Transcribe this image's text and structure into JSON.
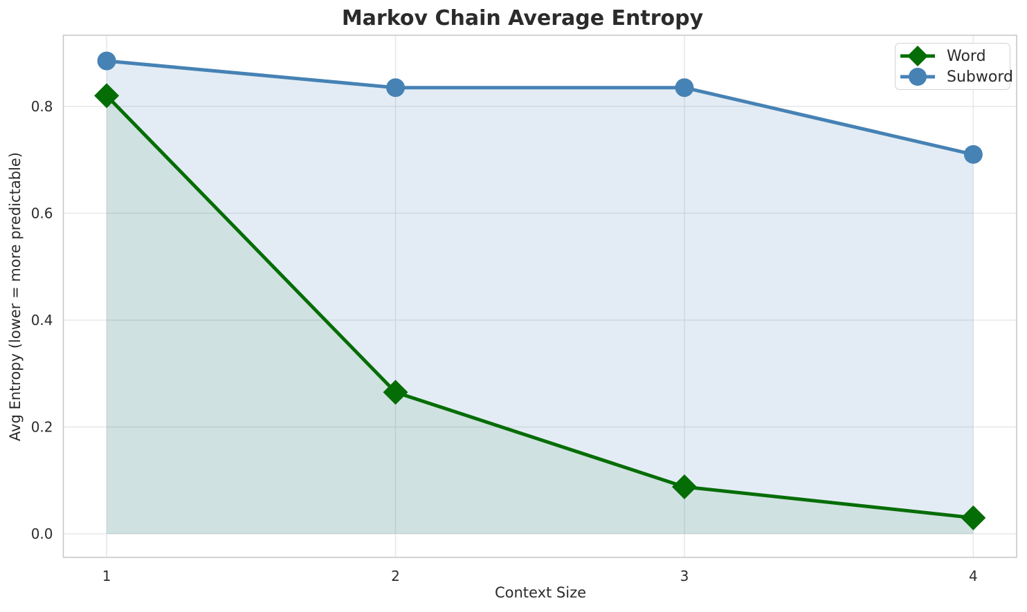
{
  "chart_data": {
    "type": "line",
    "title": "Markov Chain Average Entropy",
    "xlabel": "Context Size",
    "ylabel": "Avg Entropy (lower = more predictable)",
    "x": [
      1,
      2,
      3,
      4
    ],
    "xtick_labels": [
      "1",
      "2",
      "3",
      "4"
    ],
    "ytick_values": [
      0.0,
      0.2,
      0.4,
      0.6,
      0.8
    ],
    "ytick_labels": [
      "0.0",
      "0.2",
      "0.4",
      "0.6",
      "0.8"
    ],
    "xlim": [
      0.85,
      4.15
    ],
    "ylim": [
      -0.044,
      0.933
    ],
    "grid": true,
    "legend_position": "upper right",
    "series": [
      {
        "name": "Word",
        "values": [
          0.82,
          0.265,
          0.088,
          0.03
        ],
        "color": "#056d05",
        "marker": "diamond",
        "area_fill": true,
        "fill_alpha": 0.09
      },
      {
        "name": "Subword",
        "values": [
          0.885,
          0.835,
          0.835,
          0.71
        ],
        "color": "#4682b4",
        "marker": "circle",
        "area_fill": true,
        "fill_alpha": 0.15
      }
    ]
  },
  "style_colors": {
    "grid": "#e7e7e7",
    "spine": "#c8c8c8",
    "text": "#2b2b2b"
  }
}
